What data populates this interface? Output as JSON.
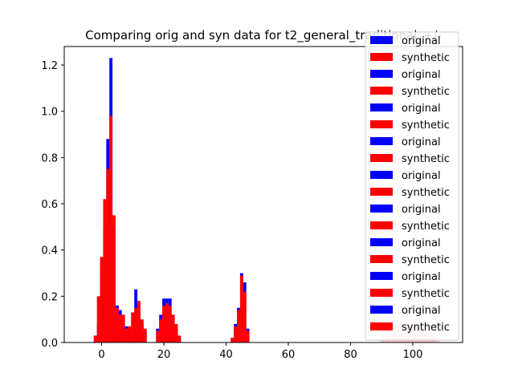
{
  "chart_data": {
    "type": "bar",
    "title": "Comparing orig and syn data for t2_general_traditional_+/-",
    "xlabel": "",
    "ylabel": "",
    "xlim": [
      -12,
      116
    ],
    "ylim": [
      0,
      1.28
    ],
    "xticks": [
      0,
      20,
      40,
      60,
      80,
      100
    ],
    "yticks": [
      0.0,
      0.2,
      0.4,
      0.6,
      0.8,
      1.0,
      1.2
    ],
    "grid": false,
    "legend_position": "upper-right",
    "legend": [
      "original",
      "synthetic",
      "original",
      "synthetic",
      "original",
      "synthetic",
      "original",
      "synthetic",
      "original",
      "synthetic",
      "original",
      "synthetic",
      "original",
      "synthetic",
      "original",
      "synthetic",
      "original",
      "synthetic"
    ],
    "colors": {
      "original": "#0000ff",
      "synthetic": "#ff0000",
      "synthetic_faint": "#ffc8c8"
    },
    "bin_width": 1,
    "series": [
      {
        "name": "original",
        "x": [
          -2,
          -1,
          0,
          1,
          2,
          3,
          4,
          5,
          6,
          7,
          8,
          9,
          10,
          11,
          12,
          13,
          14,
          18,
          19,
          20,
          21,
          22,
          23,
          24,
          25,
          42,
          43,
          44,
          45,
          46,
          47,
          91,
          92,
          93,
          94,
          95,
          96,
          97,
          98,
          99,
          100,
          101,
          102,
          103,
          104,
          105,
          106,
          107
        ],
        "values": [
          0.02,
          0.08,
          0.3,
          0.5,
          0.88,
          1.23,
          0.5,
          0.16,
          0.14,
          0.1,
          0.07,
          0.05,
          0.13,
          0.23,
          0.1,
          0.08,
          0.04,
          0.06,
          0.12,
          0.19,
          0.19,
          0.19,
          0.12,
          0.06,
          0.02,
          0.02,
          0.08,
          0.15,
          0.3,
          0.26,
          0.06,
          0.01,
          0.02,
          0.03,
          0.05,
          0.05,
          0.06,
          0.07,
          0.08,
          0.08,
          0.08,
          0.07,
          0.06,
          0.05,
          0.04,
          0.03,
          0.02,
          0.01
        ]
      },
      {
        "name": "synthetic",
        "x": [
          -2,
          -1,
          0,
          1,
          2,
          3,
          4,
          5,
          6,
          7,
          8,
          9,
          10,
          11,
          12,
          13,
          14,
          18,
          19,
          20,
          21,
          22,
          23,
          24,
          25,
          42,
          43,
          44,
          45,
          46,
          47
        ],
        "values": [
          0.03,
          0.2,
          0.37,
          0.62,
          0.75,
          0.98,
          0.55,
          0.15,
          0.12,
          0.12,
          0.06,
          0.07,
          0.13,
          0.15,
          0.18,
          0.1,
          0.06,
          0.05,
          0.1,
          0.16,
          0.17,
          0.16,
          0.12,
          0.08,
          0.03,
          0.02,
          0.07,
          0.14,
          0.29,
          0.22,
          0.05
        ]
      },
      {
        "name": "synthetic",
        "x": [
          90,
          91,
          92,
          93,
          94,
          95,
          96,
          97,
          98,
          99,
          100,
          101,
          102,
          103,
          104,
          105,
          106,
          107,
          108
        ],
        "values": [
          0.01,
          0.02,
          0.03,
          0.04,
          0.05,
          0.06,
          0.07,
          0.08,
          0.09,
          0.09,
          0.1,
          0.09,
          0.08,
          0.07,
          0.06,
          0.05,
          0.04,
          0.02,
          0.01
        ]
      }
    ]
  }
}
